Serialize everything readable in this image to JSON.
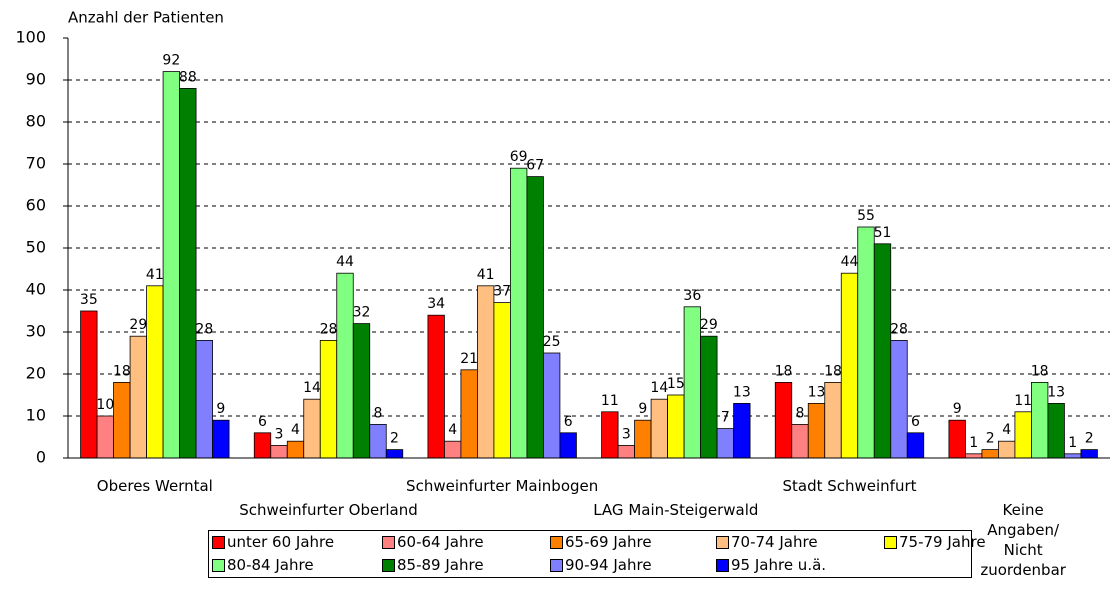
{
  "chart_data": {
    "type": "bar",
    "y_label": "Anzahl der Patienten",
    "categories": [
      "Oberes Werntal",
      "Schweinfurter Oberland",
      "Schweinfurter Mainbogen",
      "LAG Main-Steigerwald",
      "Stadt Schweinfurt",
      "Keine Angaben/\nNicht zuordenbar"
    ],
    "series": [
      {
        "name": "unter 60 Jahre",
        "color": "#ff0000",
        "values": [
          35,
          6,
          34,
          11,
          18,
          9
        ]
      },
      {
        "name": "60-64 Jahre",
        "color": "#ff8080",
        "values": [
          10,
          3,
          4,
          3,
          8,
          1
        ]
      },
      {
        "name": "65-69 Jahre",
        "color": "#ff8000",
        "values": [
          18,
          4,
          21,
          9,
          13,
          2
        ]
      },
      {
        "name": "70-74 Jahre",
        "color": "#ffbf80",
        "values": [
          29,
          14,
          41,
          14,
          18,
          4
        ]
      },
      {
        "name": "75-79 Jahre",
        "color": "#ffff00",
        "values": [
          41,
          28,
          37,
          15,
          44,
          11
        ]
      },
      {
        "name": "80-84 Jahre",
        "color": "#80ff80",
        "values": [
          92,
          44,
          69,
          36,
          55,
          18
        ]
      },
      {
        "name": "85-89 Jahre",
        "color": "#008000",
        "values": [
          88,
          32,
          67,
          29,
          51,
          13
        ]
      },
      {
        "name": "90-94 Jahre",
        "color": "#8080ff",
        "values": [
          28,
          8,
          25,
          7,
          28,
          1
        ]
      },
      {
        "name": "95 Jahre u.ä.",
        "color": "#0000ff",
        "values": [
          9,
          2,
          6,
          13,
          6,
          2
        ]
      }
    ],
    "ylim": [
      0,
      100
    ],
    "yticks": [
      0,
      10,
      20,
      30,
      40,
      50,
      60,
      70,
      80,
      90,
      100
    ],
    "grid": true
  }
}
